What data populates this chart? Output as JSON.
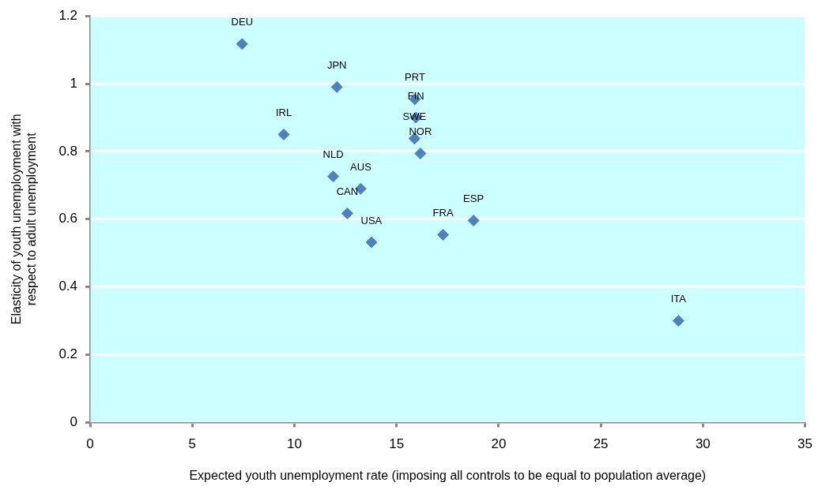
{
  "chart_data": {
    "type": "scatter",
    "xlabel": "Expected youth unemployment rate (imposing all controls to be equal to population average)",
    "ylabel": "Elasticity of youth unemployment with respect to adult unemployment",
    "series": [
      {
        "color": "#4f81bd",
        "x": [
          7.44,
          12.08,
          9.48,
          15.9,
          15.95,
          15.88,
          16.17,
          11.9,
          13.25,
          12.59,
          13.77,
          17.28,
          18.77,
          28.8
        ],
        "values": [
          1.117,
          0.99,
          0.85,
          0.954,
          0.9,
          0.838,
          0.794,
          0.726,
          0.69,
          0.617,
          0.532,
          0.554,
          0.596,
          0.3
        ]
      }
    ],
    "annotations": [
      {
        "text": "DEU",
        "x": 7.44,
        "y": 1.117
      },
      {
        "text": "JPN",
        "x": 12.08,
        "y": 0.99
      },
      {
        "text": "IRL",
        "x": 9.48,
        "y": 0.85
      },
      {
        "text": "PRT",
        "x": 15.9,
        "y": 0.954
      },
      {
        "text": "FIN",
        "x": 15.95,
        "y": 0.9
      },
      {
        "text": "SWE",
        "x": 15.88,
        "y": 0.838
      },
      {
        "text": "NOR",
        "x": 16.17,
        "y": 0.794
      },
      {
        "text": "NLD",
        "x": 11.9,
        "y": 0.726
      },
      {
        "text": "AUS",
        "x": 13.25,
        "y": 0.69
      },
      {
        "text": "CAN",
        "x": 12.59,
        "y": 0.617
      },
      {
        "text": "USA",
        "x": 13.77,
        "y": 0.532
      },
      {
        "text": "FRA",
        "x": 17.28,
        "y": 0.554
      },
      {
        "text": "ESP",
        "x": 18.77,
        "y": 0.596
      },
      {
        "text": "ITA",
        "x": 28.8,
        "y": 0.3
      }
    ],
    "xlim": [
      0,
      35
    ],
    "xticks": [
      0,
      5,
      10,
      15,
      20,
      25,
      30,
      35
    ],
    "ylim": [
      0,
      1.2
    ],
    "yticks": [
      0,
      0.2,
      0.4,
      0.6,
      0.8,
      1,
      1.2
    ],
    "grid": "y",
    "marker": "diamond",
    "legend": false
  }
}
